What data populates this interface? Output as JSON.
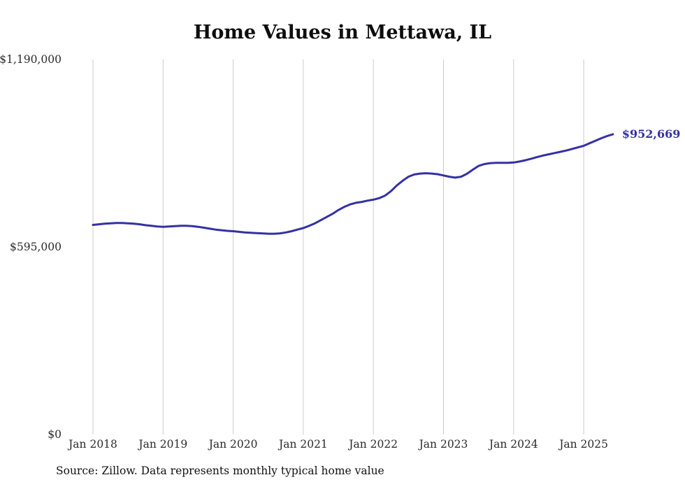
{
  "title": "Home Values in Mettawa, IL",
  "source_note": "Source: Zillow. Data represents monthly typical home value",
  "colors": {
    "line": "#3431a4",
    "grid": "#cccccc",
    "axis_text": "#2b2b2b",
    "title_text": "#0d0d0d",
    "end_label": "#3431a4"
  },
  "chart_data": {
    "type": "line",
    "title": "Home Values in Mettawa, IL",
    "xlabel": "",
    "ylabel": "",
    "ylim": [
      0,
      1190000
    ],
    "grid": "vertical-only",
    "legend": "none",
    "x_start_month": "Jan 2018",
    "x_end_month": "Jun 2025",
    "x_tick_labels": [
      "Jan 2018",
      "Jan 2019",
      "Jan 2020",
      "Jan 2021",
      "Jan 2022",
      "Jan 2023",
      "Jan 2024",
      "Jan 2025"
    ],
    "y_ticks": [
      {
        "label": "$0",
        "value": 0
      },
      {
        "label": "$595,000",
        "value": 595000
      },
      {
        "label": "$1,190,000",
        "value": 1190000
      }
    ],
    "annotation": {
      "text": "$952,669",
      "value": 952669
    },
    "series": [
      {
        "name": "Monthly typical home value",
        "values": [
          665000,
          667000,
          669000,
          670000,
          671000,
          671000,
          670000,
          669000,
          667000,
          664000,
          662000,
          660000,
          659000,
          660000,
          661000,
          662000,
          662000,
          661000,
          659000,
          656000,
          653000,
          650000,
          648000,
          646000,
          645000,
          643000,
          641000,
          640000,
          639000,
          638000,
          637000,
          637000,
          638000,
          641000,
          645000,
          650000,
          655000,
          662000,
          670000,
          680000,
          690000,
          700000,
          712000,
          722000,
          730000,
          735000,
          738000,
          742000,
          745000,
          750000,
          758000,
          772000,
          790000,
          805000,
          818000,
          825000,
          828000,
          829000,
          828000,
          826000,
          822000,
          818000,
          815000,
          818000,
          827000,
          840000,
          852000,
          858000,
          861000,
          862000,
          862000,
          862000,
          863000,
          866000,
          870000,
          875000,
          880000,
          885000,
          889000,
          893000,
          897000,
          901000,
          906000,
          911000,
          916000,
          924000,
          932000,
          940000,
          947000,
          952669
        ]
      }
    ]
  }
}
